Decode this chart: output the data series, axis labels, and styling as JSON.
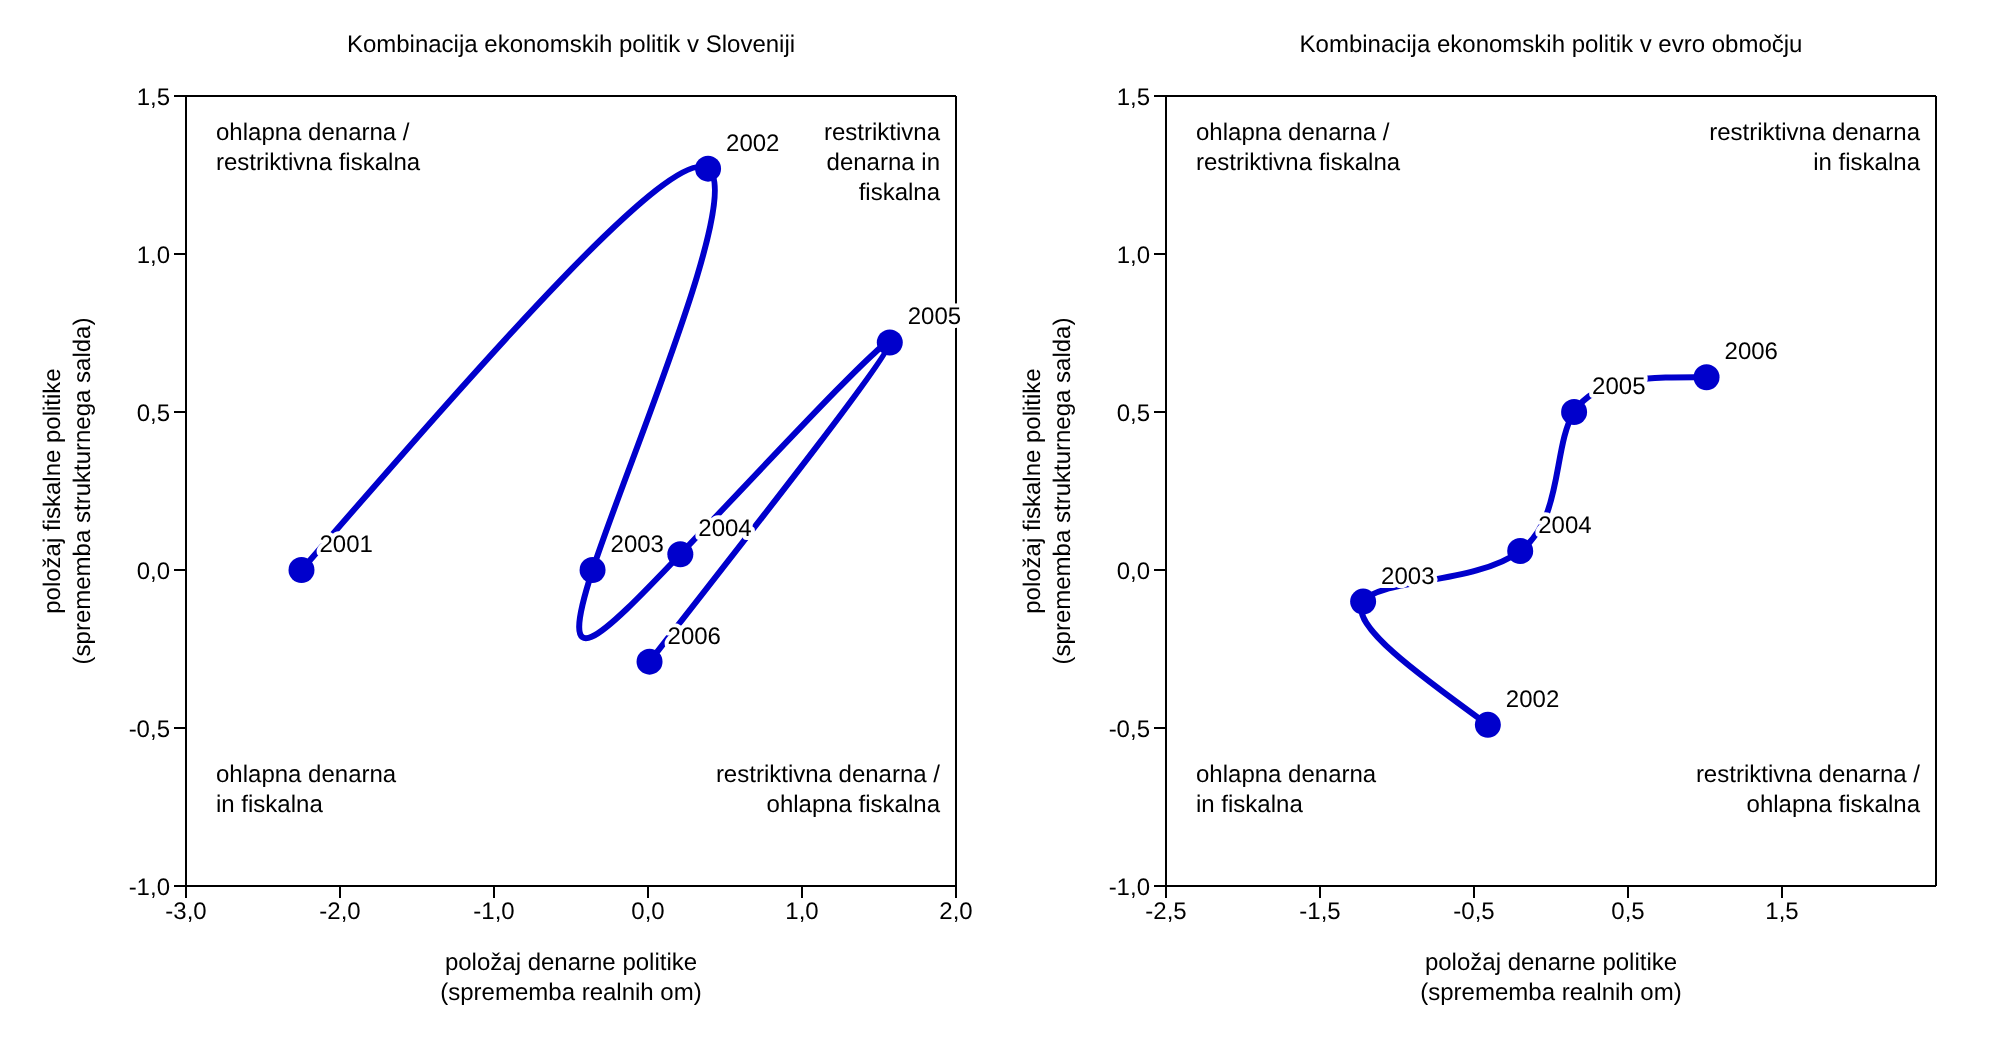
{
  "chart_data": [
    {
      "type": "line",
      "title": "Kombinacija ekonomskih politik v Sloveniji",
      "xlabel": "položaj denarne politike\n(sprememba realnih om)",
      "ylabel": "položaj fiskalne politike\n(sprememba strukturnega salda)",
      "marker": "circle",
      "grid": false,
      "legend": false,
      "xlim": [
        -3,
        2
      ],
      "xticks": [
        {
          "value": -3,
          "label": "-3,0"
        },
        {
          "value": -2,
          "label": "-2,0"
        },
        {
          "value": -1,
          "label": "-1,0"
        },
        {
          "value": 0,
          "label": "0,0"
        },
        {
          "value": 1,
          "label": "1,0"
        },
        {
          "value": 2,
          "label": "2,0"
        }
      ],
      "ylim": [
        -1,
        1.5
      ],
      "yticks": [
        {
          "value": -1,
          "label": "-1,0"
        },
        {
          "value": -0.5,
          "label": "-0,5"
        },
        {
          "value": 0,
          "label": "0,0"
        },
        {
          "value": 0.5,
          "label": "0,5"
        },
        {
          "value": 1,
          "label": "1,0"
        },
        {
          "value": 1.5,
          "label": "1,5"
        }
      ],
      "series": [
        {
          "color": "#0000cc",
          "x": [
            -2.25,
            0.39,
            -0.36,
            0.21,
            1.57,
            0.01
          ],
          "values": [
            0,
            1.27,
            0,
            0.05,
            0.72,
            -0.29
          ]
        }
      ],
      "annotations": [
        "ohlapna denarna /\nrestriktivna fiskalna",
        "restriktivna\ndenarna in\nfiskalna",
        "ohlapna denarna\nin fiskalna",
        "restriktivna denarna /\nohlapna fiskalna",
        {
          "text": "2001",
          "x": -2.25,
          "y": 0
        },
        {
          "text": "2002",
          "x": 0.39,
          "y": 1.27
        },
        {
          "text": "2003",
          "x": -0.36,
          "y": 0
        },
        {
          "text": "2004",
          "x": 0.21,
          "y": 0.05
        },
        {
          "text": "2005",
          "x": 1.57,
          "y": 0.72
        },
        {
          "text": "2006",
          "x": 0.01,
          "y": -0.29
        }
      ]
    },
    {
      "type": "line",
      "title": "Kombinacija ekonomskih politik v evro območju",
      "xlabel": "položaj denarne politike\n(sprememba realnih om)",
      "ylabel": "položaj fiskalne politike\n(sprememba strukturnega salda)",
      "marker": "circle",
      "grid": false,
      "legend": false,
      "xlim": [
        -2.5,
        2.5
      ],
      "xticks": [
        {
          "value": -2.5,
          "label": "-2,5"
        },
        {
          "value": -1.5,
          "label": "-1,5"
        },
        {
          "value": -0.5,
          "label": "-0,5"
        },
        {
          "value": 0.5,
          "label": "0,5"
        },
        {
          "value": 1.5,
          "label": "1,5"
        }
      ],
      "ylim": [
        -1,
        1.5
      ],
      "yticks": [
        {
          "value": -1,
          "label": "-1,0"
        },
        {
          "value": -0.5,
          "label": "-0,5"
        },
        {
          "value": 0,
          "label": "0,0"
        },
        {
          "value": 0.5,
          "label": "0,5"
        },
        {
          "value": 1,
          "label": "1,0"
        },
        {
          "value": 1.5,
          "label": "1,5"
        }
      ],
      "series": [
        {
          "color": "#0000cc",
          "x": [
            -0.41,
            -1.22,
            -0.2,
            0.15,
            1.01
          ],
          "values": [
            -0.49,
            -0.1,
            0.06,
            0.5,
            0.61
          ]
        }
      ],
      "annotations": [
        "ohlapna denarna /\nrestriktivna fiskalna",
        "restriktivna denarna\nin fiskalna",
        "ohlapna denarna\nin fiskalna",
        "restriktivna denarna /\nohlapna fiskalna",
        {
          "text": "2002",
          "x": -0.41,
          "y": -0.49
        },
        {
          "text": "2003",
          "x": -1.22,
          "y": -0.1
        },
        {
          "text": "2004",
          "x": -0.2,
          "y": 0.06
        },
        {
          "text": "2005",
          "x": 0.15,
          "y": 0.5
        },
        {
          "text": "2006",
          "x": 1.01,
          "y": 0.61
        }
      ]
    }
  ]
}
